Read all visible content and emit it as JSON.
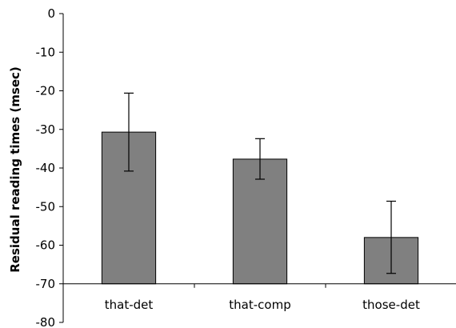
{
  "chart_data": {
    "type": "bar",
    "title": "",
    "xlabel": "",
    "ylabel": "Residual reading times (msec)",
    "categories": [
      "that-det",
      "that-comp",
      "those-det"
    ],
    "values": [
      -30.7,
      -37.7,
      -58.0
    ],
    "error_low": [
      -40.8,
      -42.9,
      -67.3
    ],
    "error_high": [
      -20.6,
      -32.4,
      -48.6
    ],
    "ylim": [
      -80,
      0
    ],
    "yticks": [
      0,
      -10,
      -20,
      -30,
      -40,
      -50,
      -60,
      -70,
      -80
    ],
    "bar_baseline": -70,
    "category_axis_at": -70,
    "grid": false,
    "legend": "none",
    "bar_color": "#808080",
    "bar_edge_color": "#000000"
  }
}
